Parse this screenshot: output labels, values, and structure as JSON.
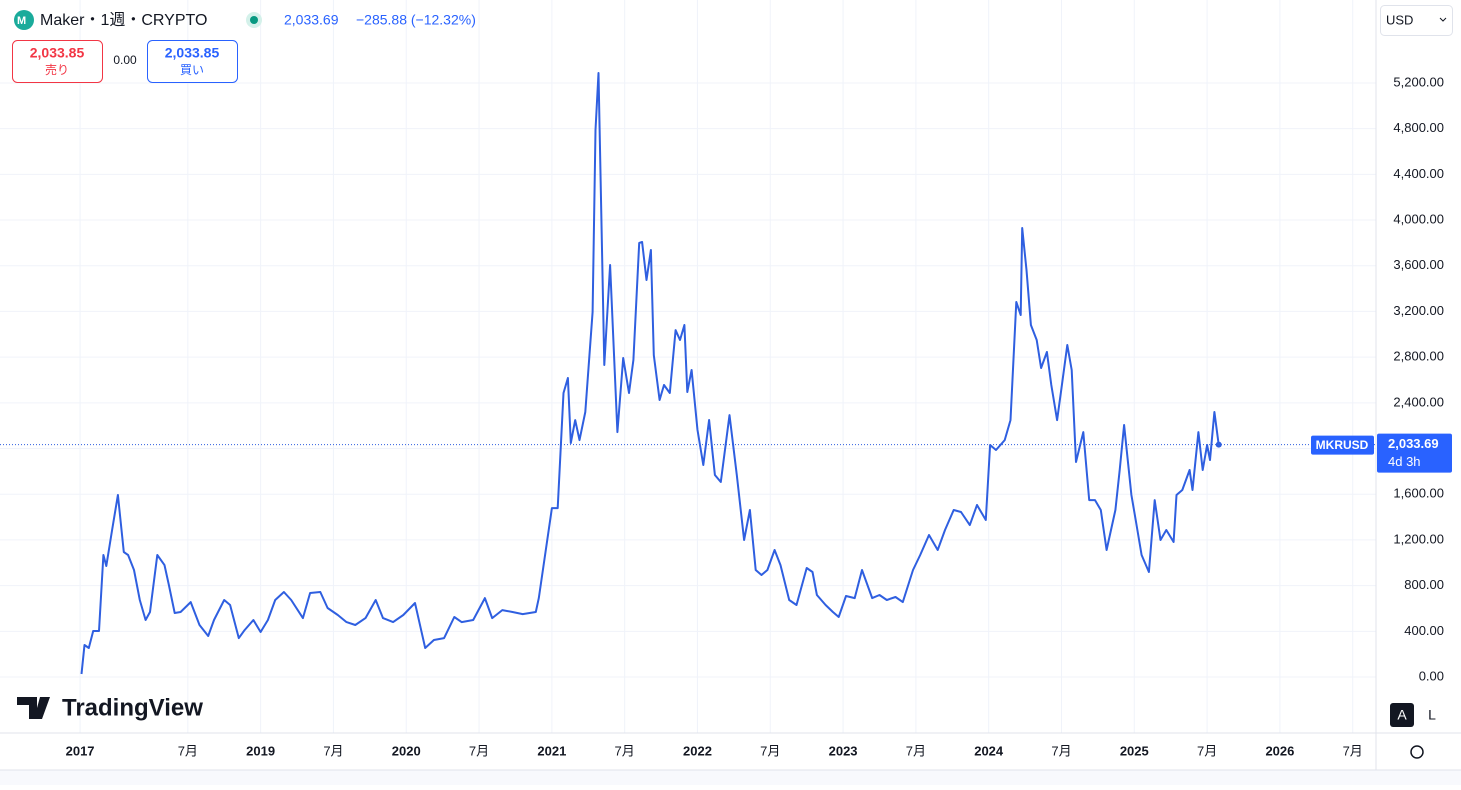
{
  "header": {
    "symbol": "Maker・1週・CRYPTO",
    "price": "2,033.69",
    "change": "−285.88 (−12.32%)",
    "sell_price": "2,033.85",
    "sell_label": "売り",
    "spread": "0.00",
    "buy_price": "2,033.85",
    "buy_label": "買い",
    "currency": "USD"
  },
  "price_tag": {
    "symbol": "MKRUSD",
    "price": "2,033.69",
    "countdown": "4d 3h"
  },
  "brand": "TradingView",
  "buttons": [
    "A",
    "L"
  ],
  "chart_data": {
    "type": "line",
    "color": "#2f5fe0",
    "grid": true,
    "xlim": [
      2017.21,
      2026.66
    ],
    "ylim": [
      -490,
      5926
    ],
    "xticks": [
      {
        "value": 2017.76,
        "label": "2017"
      },
      {
        "value": 2018.5,
        "label": "7月"
      },
      {
        "value": 2019,
        "label": "2019"
      },
      {
        "value": 2019.5,
        "label": "7月"
      },
      {
        "value": 2020,
        "label": "2020"
      },
      {
        "value": 2020.5,
        "label": "7月"
      },
      {
        "value": 2021,
        "label": "2021"
      },
      {
        "value": 2021.5,
        "label": "7月"
      },
      {
        "value": 2022,
        "label": "2022"
      },
      {
        "value": 2022.5,
        "label": "7月"
      },
      {
        "value": 2023,
        "label": "2023"
      },
      {
        "value": 2023.5,
        "label": "7月"
      },
      {
        "value": 2024,
        "label": "2024"
      },
      {
        "value": 2024.5,
        "label": "7月"
      },
      {
        "value": 2025,
        "label": "2025"
      },
      {
        "value": 2025.5,
        "label": "7月"
      },
      {
        "value": 2026,
        "label": "2026"
      },
      {
        "value": 2026.5,
        "label": "7月"
      }
    ],
    "yticks": [
      {
        "value": 0,
        "label": "0.00"
      },
      {
        "value": 400,
        "label": "400.00"
      },
      {
        "value": 800,
        "label": "800.00"
      },
      {
        "value": 1200,
        "label": "1,200.00"
      },
      {
        "value": 1600,
        "label": "1,600.00"
      },
      {
        "value": 2000,
        "label": "2,000.00"
      },
      {
        "value": 2400,
        "label": "2,400.00"
      },
      {
        "value": 2800,
        "label": "2,800.00"
      },
      {
        "value": 3200,
        "label": "3,200.00"
      },
      {
        "value": 3600,
        "label": "3,600.00"
      },
      {
        "value": 4000,
        "label": "4,000.00"
      },
      {
        "value": 4400,
        "label": "4,400.00"
      },
      {
        "value": 4800,
        "label": "4,800.00"
      },
      {
        "value": 5200,
        "label": "5,200.00"
      }
    ],
    "x": [
      2017.77,
      2017.79,
      2017.82,
      2017.85,
      2017.89,
      2017.92,
      2017.94,
      2017.98,
      2018.02,
      2018.06,
      2018.09,
      2018.13,
      2018.17,
      2018.21,
      2018.24,
      2018.29,
      2018.34,
      2018.37,
      2018.41,
      2018.45,
      2018.52,
      2018.58,
      2018.64,
      2018.68,
      2018.75,
      2018.79,
      2018.85,
      2018.89,
      2018.95,
      2019.0,
      2019.05,
      2019.1,
      2019.16,
      2019.21,
      2019.29,
      2019.34,
      2019.41,
      2019.46,
      2019.53,
      2019.59,
      2019.65,
      2019.72,
      2019.79,
      2019.84,
      2019.91,
      2019.98,
      2020.06,
      2020.13,
      2020.19,
      2020.26,
      2020.33,
      2020.38,
      2020.46,
      2020.54,
      2020.59,
      2020.66,
      2020.73,
      2020.8,
      2020.89,
      2020.91,
      2021.0,
      2021.04,
      2021.08,
      2021.11,
      2021.13,
      2021.16,
      2021.19,
      2021.23,
      2021.28,
      2021.3,
      2021.32,
      2021.36,
      2021.4,
      2021.45,
      2021.49,
      2021.53,
      2021.56,
      2021.6,
      2021.62,
      2021.65,
      2021.68,
      2021.7,
      2021.74,
      2021.77,
      2021.81,
      2021.85,
      2021.88,
      2021.91,
      2021.93,
      2021.96,
      2022.0,
      2022.04,
      2022.08,
      2022.12,
      2022.16,
      2022.22,
      2022.27,
      2022.32,
      2022.36,
      2022.4,
      2022.44,
      2022.48,
      2022.53,
      2022.57,
      2022.63,
      2022.68,
      2022.75,
      2022.79,
      2022.82,
      2022.88,
      2022.93,
      2022.97,
      2023.02,
      2023.08,
      2023.13,
      2023.2,
      2023.25,
      2023.3,
      2023.36,
      2023.41,
      2023.48,
      2023.53,
      2023.59,
      2023.65,
      2023.7,
      2023.76,
      2023.81,
      2023.87,
      2023.92,
      2023.98,
      2024.01,
      2024.05,
      2024.11,
      2024.15,
      2024.19,
      2024.22,
      2024.23,
      2024.26,
      2024.29,
      2024.33,
      2024.36,
      2024.4,
      2024.43,
      2024.47,
      2024.5,
      2024.54,
      2024.57,
      2024.6,
      2024.65,
      2024.69,
      2024.73,
      2024.77,
      2024.81,
      2024.87,
      2024.9,
      2024.93,
      2024.98,
      2025.01,
      2025.05,
      2025.1,
      2025.14,
      2025.18,
      2025.22,
      2025.27,
      2025.29,
      2025.33,
      2025.38,
      2025.4,
      2025.44,
      2025.47,
      2025.5,
      2025.52,
      2025.55,
      2025.58
    ],
    "series": [
      {
        "name": "MKRUSD",
        "color": "#2f5fe0",
        "values": [
          26,
          280,
          254,
          403,
          403,
          1068,
          972,
          1287,
          1593,
          1094,
          1068,
          937,
          674,
          499,
          569,
          1068,
          980,
          805,
          560,
          569,
          656,
          455,
          359,
          499,
          674,
          630,
          341,
          411,
          499,
          394,
          499,
          674,
          744,
          674,
          516,
          735,
          744,
          604,
          543,
          481,
          455,
          516,
          674,
          516,
          481,
          543,
          648,
          254,
          324,
          341,
          525,
          481,
          499,
          691,
          516,
          586,
          569,
          551,
          569,
          691,
          1479,
          1479,
          2486,
          2617,
          2048,
          2249,
          2074,
          2320,
          3195,
          4788,
          5287,
          2731,
          3606,
          2144,
          2792,
          2486,
          2775,
          3799,
          3808,
          3475,
          3738,
          2818,
          2425,
          2556,
          2486,
          3037,
          2950,
          3081,
          2495,
          2687,
          2162,
          1856,
          2250,
          1768,
          1707,
          2293,
          1768,
          1199,
          1462,
          937,
          893,
          937,
          1112,
          980,
          674,
          630,
          954,
          919,
          718,
          630,
          569,
          525,
          709,
          691,
          937,
          691,
          718,
          674,
          700,
          656,
          937,
          1068,
          1243,
          1112,
          1287,
          1462,
          1444,
          1330,
          1506,
          1374,
          2031,
          1987,
          2074,
          2249,
          3283,
          3169,
          3930,
          3563,
          3081,
          2950,
          2705,
          2845,
          2556,
          2249,
          2530,
          2906,
          2687,
          1882,
          2144,
          1549,
          1549,
          1462,
          1112,
          1462,
          1812,
          2206,
          1593,
          1374,
          1068,
          919,
          1549,
          1199,
          1287,
          1182,
          1593,
          1637,
          1812,
          1637,
          2144,
          1812,
          2031,
          1900,
          2320,
          2033.69
        ]
      }
    ]
  }
}
